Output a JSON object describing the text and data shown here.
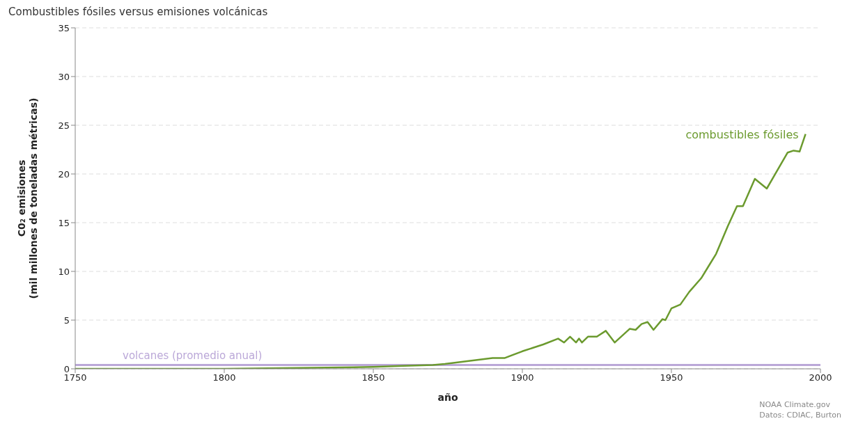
{
  "chart_data": {
    "type": "line",
    "title": "Combustibles fósiles versus emisiones volcánicas",
    "xlabel": "año",
    "ylabel": "C0₂ emisiones\n(mil millones de toneladas métricas)",
    "series": [
      {
        "name": "combustibles fósiles",
        "color": "#6b9a2e",
        "x": [
          1750,
          1800,
          1830,
          1850,
          1860,
          1870,
          1874,
          1882,
          1890,
          1894,
          1900,
          1907,
          1912,
          1914,
          1916,
          1918,
          1919,
          1920,
          1922,
          1925,
          1928,
          1931,
          1936,
          1938,
          1940,
          1942,
          1944,
          1947,
          1948,
          1950,
          1953,
          1956,
          1960,
          1965,
          1969,
          1972,
          1974,
          1978,
          1982,
          1989,
          1991,
          1993,
          1995
        ],
        "values": [
          0,
          0,
          0.1,
          0.2,
          0.3,
          0.4,
          0.5,
          0.8,
          1.1,
          1.1,
          1.8,
          2.5,
          3.1,
          2.7,
          3.3,
          2.7,
          3.1,
          2.7,
          3.3,
          3.3,
          3.9,
          2.7,
          4.1,
          4,
          4.6,
          4.8,
          4,
          5.1,
          5,
          6.2,
          6.6,
          7.9,
          9.3,
          11.8,
          14.7,
          16.7,
          16.7,
          19.5,
          18.5,
          22.2,
          22.4,
          22.3,
          24.1
        ]
      }
    ],
    "ref_lines": [
      {
        "axis": "y",
        "value": 0.4,
        "label": "volcanes (promedio anual)",
        "color": "#bba8d8"
      }
    ],
    "xlim": [
      1750,
      2000
    ],
    "xticks": [
      1750,
      1800,
      1850,
      1900,
      1950,
      2000
    ],
    "ylim": [
      0,
      35
    ],
    "yticks": [
      0,
      5,
      10,
      15,
      20,
      25,
      30,
      35
    ],
    "grid": "y",
    "legend": false,
    "annotations": [
      "NOAA Climate.gov",
      "Datos: CDIAC, Burton"
    ]
  }
}
